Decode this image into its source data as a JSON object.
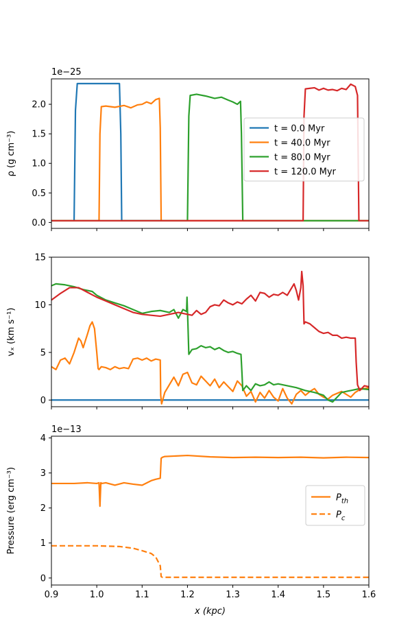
{
  "chart_data": [
    {
      "type": "line",
      "title": "",
      "offset_label": "1e−25",
      "xlabel": "",
      "ylabel": "ρ (g cm⁻³)",
      "xlim": [
        0.9,
        1.6
      ],
      "ylim": [
        -0.1,
        2.43
      ],
      "x_ticks": [
        0.9,
        1.0,
        1.1,
        1.2,
        1.3,
        1.4,
        1.5,
        1.6
      ],
      "x_ticklabels_shown": false,
      "y_ticks": [
        0.0,
        0.5,
        1.0,
        1.5,
        2.0
      ],
      "y_ticklabels": [
        "0.0",
        "0.5",
        "1.0",
        "1.5",
        "2.0"
      ],
      "legend": {
        "placement": "center-right",
        "entries": [
          "t = 0.0 Myr",
          "t = 40.0 Myr",
          "t = 80.0 Myr",
          "t = 120.0 Myr"
        ]
      },
      "series": [
        {
          "name": "t = 0.0 Myr",
          "color": "#1f77b4",
          "dash": "solid",
          "x": [
            0.9,
            0.95,
            0.953,
            0.957,
            1.05,
            1.053,
            1.055,
            1.6
          ],
          "y": [
            0.03,
            0.03,
            1.9,
            2.35,
            2.35,
            1.5,
            0.03,
            0.03
          ]
        },
        {
          "name": "t = 40.0 Myr",
          "color": "#ff7f0e",
          "dash": "solid",
          "x": [
            0.9,
            1.005,
            1.007,
            1.01,
            1.02,
            1.04,
            1.06,
            1.075,
            1.09,
            1.1,
            1.11,
            1.12,
            1.13,
            1.138,
            1.14,
            1.142,
            1.6
          ],
          "y": [
            0.03,
            0.03,
            1.5,
            1.96,
            1.97,
            1.95,
            1.98,
            1.94,
            1.99,
            2.0,
            2.04,
            2.01,
            2.08,
            2.1,
            1.6,
            0.03,
            0.03
          ]
        },
        {
          "name": "t = 80.0 Myr",
          "color": "#2ca02c",
          "dash": "solid",
          "x": [
            0.9,
            1.2,
            1.203,
            1.206,
            1.22,
            1.24,
            1.25,
            1.26,
            1.275,
            1.29,
            1.3,
            1.31,
            1.317,
            1.319,
            1.322,
            1.6
          ],
          "y": [
            0.03,
            0.03,
            1.8,
            2.15,
            2.17,
            2.14,
            2.12,
            2.1,
            2.12,
            2.07,
            2.04,
            2.0,
            2.05,
            1.5,
            0.03,
            0.03
          ]
        },
        {
          "name": "t = 120.0 Myr",
          "color": "#d62728",
          "dash": "solid",
          "x": [
            0.9,
            1.455,
            1.457,
            1.46,
            1.48,
            1.49,
            1.5,
            1.51,
            1.52,
            1.53,
            1.54,
            1.55,
            1.56,
            1.57,
            1.575,
            1.578,
            1.6
          ],
          "y": [
            0.03,
            0.03,
            1.8,
            2.26,
            2.28,
            2.24,
            2.27,
            2.24,
            2.25,
            2.23,
            2.27,
            2.25,
            2.34,
            2.3,
            2.15,
            0.03,
            0.03
          ]
        }
      ]
    },
    {
      "type": "line",
      "title": "",
      "xlabel": "",
      "ylabel": "vₓ (km s⁻¹)",
      "xlim": [
        0.9,
        1.6
      ],
      "ylim": [
        -0.7,
        15
      ],
      "x_ticks": [
        0.9,
        1.0,
        1.1,
        1.2,
        1.3,
        1.4,
        1.5,
        1.6
      ],
      "x_ticklabels_shown": false,
      "y_ticks": [
        0,
        5,
        10,
        15
      ],
      "y_ticklabels": [
        "0",
        "5",
        "10",
        "15"
      ],
      "series": [
        {
          "name": "t = 0.0 Myr",
          "color": "#1f77b4",
          "dash": "solid",
          "x": [
            0.9,
            1.6
          ],
          "y": [
            0.0,
            0.0
          ]
        },
        {
          "name": "t = 40.0 Myr",
          "color": "#ff7f0e",
          "dash": "solid",
          "x": [
            0.9,
            0.91,
            0.92,
            0.93,
            0.94,
            0.95,
            0.96,
            0.965,
            0.97,
            0.98,
            0.985,
            0.99,
            0.995,
            1.0,
            1.003,
            1.005,
            1.01,
            1.02,
            1.03,
            1.04,
            1.05,
            1.06,
            1.07,
            1.08,
            1.09,
            1.1,
            1.11,
            1.12,
            1.13,
            1.14,
            1.141,
            1.143,
            1.15,
            1.16,
            1.17,
            1.18,
            1.19,
            1.2,
            1.21,
            1.22,
            1.23,
            1.24,
            1.25,
            1.26,
            1.27,
            1.28,
            1.29,
            1.3,
            1.31,
            1.32,
            1.33,
            1.34,
            1.35,
            1.36,
            1.37,
            1.38,
            1.39,
            1.4,
            1.41,
            1.42,
            1.43,
            1.44,
            1.45,
            1.46,
            1.47,
            1.48,
            1.49,
            1.5,
            1.51,
            1.52,
            1.53,
            1.54,
            1.55,
            1.56,
            1.57,
            1.58,
            1.59,
            1.6
          ],
          "y": [
            3.5,
            3.2,
            4.2,
            4.4,
            3.8,
            5.0,
            6.5,
            6.2,
            5.5,
            7.0,
            7.8,
            8.2,
            7.5,
            5.0,
            3.3,
            3.2,
            3.5,
            3.4,
            3.2,
            3.5,
            3.3,
            3.4,
            3.3,
            4.3,
            4.4,
            4.2,
            4.4,
            4.1,
            4.3,
            4.2,
            0.5,
            -0.4,
            0.8,
            1.6,
            2.4,
            1.5,
            2.7,
            2.9,
            1.8,
            1.6,
            2.5,
            2.0,
            1.5,
            2.2,
            1.3,
            1.9,
            1.4,
            0.9,
            2.0,
            1.5,
            0.4,
            0.9,
            -0.2,
            0.8,
            0.2,
            1.0,
            0.3,
            -0.1,
            1.2,
            0.2,
            -0.4,
            0.6,
            1.0,
            0.5,
            0.9,
            1.2,
            0.6,
            0.3,
            0.1,
            0.5,
            0.7,
            0.9,
            0.6,
            0.3,
            0.8,
            1.1,
            1.2,
            1.3
          ]
        },
        {
          "name": "t = 80.0 Myr",
          "color": "#2ca02c",
          "dash": "solid",
          "x": [
            0.9,
            0.91,
            0.93,
            0.95,
            0.97,
            0.99,
            1.0,
            1.02,
            1.04,
            1.06,
            1.08,
            1.1,
            1.12,
            1.14,
            1.16,
            1.17,
            1.18,
            1.19,
            1.198,
            1.199,
            1.201,
            1.203,
            1.21,
            1.22,
            1.23,
            1.24,
            1.25,
            1.26,
            1.27,
            1.28,
            1.29,
            1.3,
            1.31,
            1.318,
            1.32,
            1.322,
            1.33,
            1.34,
            1.35,
            1.36,
            1.37,
            1.38,
            1.39,
            1.4,
            1.42,
            1.44,
            1.46,
            1.48,
            1.5,
            1.51,
            1.52,
            1.53,
            1.54,
            1.56,
            1.58,
            1.6
          ],
          "y": [
            12.0,
            12.2,
            12.1,
            11.9,
            11.6,
            11.4,
            11.0,
            10.5,
            10.2,
            9.9,
            9.5,
            9.1,
            9.3,
            9.4,
            9.2,
            9.5,
            8.6,
            9.5,
            9.3,
            10.8,
            8.0,
            4.8,
            5.3,
            5.4,
            5.7,
            5.5,
            5.6,
            5.3,
            5.5,
            5.2,
            5.0,
            5.1,
            4.9,
            4.8,
            3.0,
            1.0,
            1.5,
            1.0,
            1.7,
            1.5,
            1.6,
            1.9,
            1.6,
            1.7,
            1.5,
            1.3,
            1.0,
            0.8,
            0.5,
            0.0,
            -0.2,
            0.3,
            0.8,
            1.0,
            1.2,
            1.1
          ]
        },
        {
          "name": "t = 120.0 Myr",
          "color": "#d62728",
          "dash": "solid",
          "x": [
            0.9,
            0.92,
            0.94,
            0.96,
            0.98,
            1.0,
            1.02,
            1.04,
            1.06,
            1.08,
            1.1,
            1.12,
            1.14,
            1.16,
            1.18,
            1.2,
            1.21,
            1.22,
            1.23,
            1.24,
            1.25,
            1.26,
            1.27,
            1.28,
            1.29,
            1.3,
            1.31,
            1.32,
            1.33,
            1.34,
            1.35,
            1.36,
            1.37,
            1.38,
            1.39,
            1.4,
            1.41,
            1.42,
            1.43,
            1.435,
            1.44,
            1.445,
            1.45,
            1.452,
            1.455,
            1.457,
            1.46,
            1.47,
            1.48,
            1.49,
            1.5,
            1.51,
            1.52,
            1.53,
            1.54,
            1.55,
            1.56,
            1.57,
            1.572,
            1.575,
            1.58,
            1.59,
            1.6
          ],
          "y": [
            10.5,
            11.2,
            11.8,
            11.8,
            11.3,
            10.8,
            10.4,
            10.0,
            9.6,
            9.2,
            9.0,
            8.9,
            8.8,
            9.0,
            9.2,
            9.0,
            8.9,
            9.4,
            9.0,
            9.2,
            9.8,
            10.0,
            9.9,
            10.5,
            10.2,
            10.0,
            10.3,
            10.1,
            10.6,
            11.0,
            10.4,
            11.3,
            11.2,
            10.8,
            11.1,
            11.0,
            11.3,
            11.0,
            11.8,
            12.2,
            11.5,
            10.5,
            11.8,
            13.5,
            12.0,
            8.0,
            8.2,
            8.0,
            7.6,
            7.2,
            7.0,
            7.1,
            6.8,
            6.8,
            6.5,
            6.6,
            6.5,
            6.5,
            4.0,
            1.6,
            1.0,
            1.5,
            1.4
          ]
        }
      ]
    },
    {
      "type": "line",
      "title": "",
      "offset_label": "1e−13",
      "xlabel": "x (kpc)",
      "ylabel": "Pressure (erg cm⁻³)",
      "xlim": [
        0.9,
        1.6
      ],
      "ylim": [
        -0.2,
        4.05
      ],
      "x_ticks": [
        0.9,
        1.0,
        1.1,
        1.2,
        1.3,
        1.4,
        1.5,
        1.6
      ],
      "x_ticklabels": [
        "0.9",
        "1.0",
        "1.1",
        "1.2",
        "1.3",
        "1.4",
        "1.5",
        "1.6"
      ],
      "y_ticks": [
        0,
        1,
        2,
        3,
        4
      ],
      "y_ticklabels": [
        "0",
        "1",
        "2",
        "3",
        "4"
      ],
      "legend": {
        "placement": "right",
        "entries": [
          "P_th",
          "P_c"
        ]
      },
      "series": [
        {
          "name": "P_th",
          "color": "#ff7f0e",
          "dash": "solid",
          "x": [
            0.9,
            0.95,
            0.98,
            1.0,
            1.005,
            1.007,
            1.009,
            1.011,
            1.02,
            1.04,
            1.06,
            1.08,
            1.1,
            1.12,
            1.13,
            1.14,
            1.142,
            1.145,
            1.15,
            1.2,
            1.25,
            1.3,
            1.35,
            1.4,
            1.45,
            1.5,
            1.55,
            1.6
          ],
          "y": [
            2.7,
            2.7,
            2.72,
            2.7,
            2.72,
            2.05,
            2.72,
            2.7,
            2.72,
            2.65,
            2.72,
            2.68,
            2.65,
            2.78,
            2.82,
            2.85,
            3.42,
            3.45,
            3.47,
            3.5,
            3.46,
            3.44,
            3.45,
            3.44,
            3.45,
            3.43,
            3.45,
            3.44
          ]
        },
        {
          "name": "P_c",
          "color": "#ff7f0e",
          "dash": "dashed",
          "x": [
            0.9,
            0.95,
            1.0,
            1.05,
            1.08,
            1.1,
            1.12,
            1.13,
            1.14,
            1.142,
            1.145,
            1.2,
            1.3,
            1.4,
            1.5,
            1.6
          ],
          "y": [
            0.92,
            0.92,
            0.92,
            0.9,
            0.85,
            0.78,
            0.7,
            0.6,
            0.35,
            0.04,
            0.02,
            0.02,
            0.02,
            0.02,
            0.02,
            0.02
          ]
        }
      ]
    }
  ]
}
